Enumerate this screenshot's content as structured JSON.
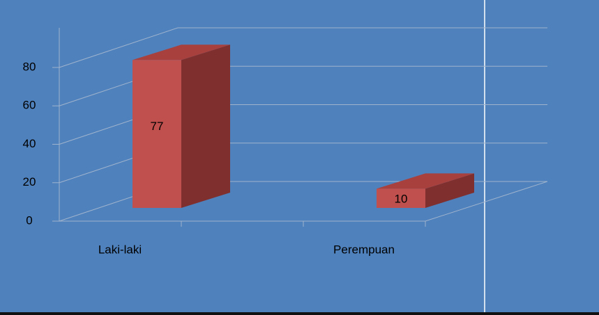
{
  "chart_data": {
    "type": "bar3d",
    "categories": [
      "Laki-laki",
      "Perempuan"
    ],
    "values": [
      77,
      10
    ],
    "color": "#c0504d",
    "ylim": [
      0,
      80
    ],
    "yticks": [
      0,
      20,
      40,
      60,
      80
    ],
    "grid": true
  }
}
